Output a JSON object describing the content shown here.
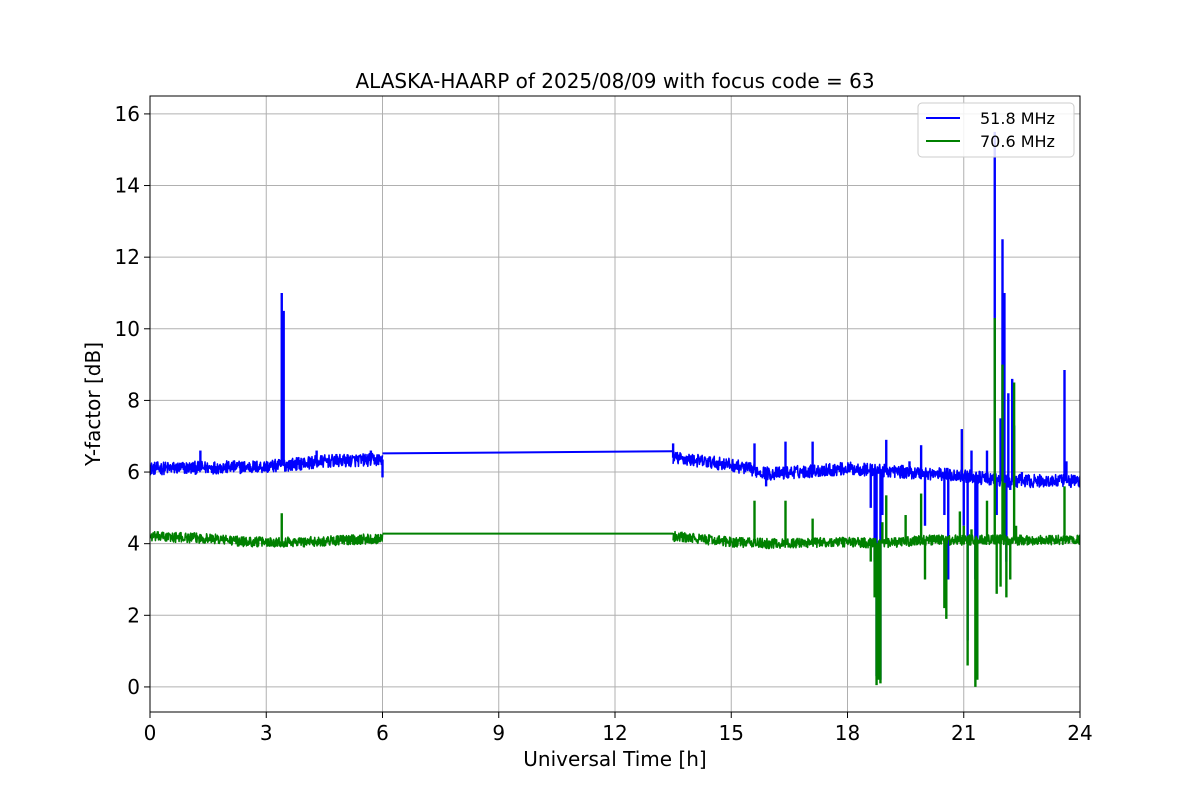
{
  "chart_data": {
    "type": "line",
    "title": "ALASKA-HAARP of 2025/08/09 with focus code = 63",
    "xlabel": "Universal Time [h]",
    "ylabel": "Y-factor [dB]",
    "xlim": [
      0,
      24
    ],
    "ylim": [
      -0.7,
      16.5
    ],
    "xticks": [
      0,
      3,
      6,
      9,
      12,
      15,
      18,
      21,
      24
    ],
    "yticks": [
      0,
      2,
      4,
      6,
      8,
      10,
      12,
      14,
      16
    ],
    "grid": true,
    "legend_position": "top-right",
    "series": [
      {
        "name": "51.8 MHz",
        "color": "#0000ff",
        "baseline": [
          [
            0,
            6.1
          ],
          [
            3,
            6.15
          ],
          [
            4.5,
            6.3
          ],
          [
            6,
            6.35
          ],
          [
            13.5,
            6.4
          ],
          [
            15,
            6.2
          ],
          [
            16,
            5.95
          ],
          [
            18,
            6.1
          ],
          [
            19.5,
            6.0
          ],
          [
            21,
            5.9
          ],
          [
            22,
            5.75
          ],
          [
            24,
            5.75
          ]
        ],
        "noise": 0.18,
        "segments": [
          [
            0,
            6
          ],
          [
            13.5,
            24
          ]
        ],
        "bridges": [
          [
            6,
            6.52,
            13.5,
            6.58
          ]
        ],
        "spikes": [
          [
            1.3,
            6.6
          ],
          [
            3.4,
            11.0
          ],
          [
            3.45,
            10.5
          ],
          [
            4.3,
            6.6
          ],
          [
            5.7,
            6.6
          ],
          [
            6.0,
            5.85
          ],
          [
            13.5,
            6.8
          ],
          [
            15.6,
            6.8
          ],
          [
            15.9,
            5.6
          ],
          [
            16.4,
            6.85
          ],
          [
            17.1,
            6.85
          ],
          [
            18.6,
            5.0
          ],
          [
            18.7,
            3.5
          ],
          [
            18.75,
            0.3
          ],
          [
            18.85,
            0.2
          ],
          [
            18.9,
            4.8
          ],
          [
            19.0,
            6.9
          ],
          [
            19.6,
            6.3
          ],
          [
            19.9,
            6.75
          ],
          [
            20.0,
            4.5
          ],
          [
            20.5,
            4.8
          ],
          [
            20.6,
            3.0
          ],
          [
            20.95,
            7.2
          ],
          [
            21.0,
            4.5
          ],
          [
            21.1,
            1.3
          ],
          [
            21.2,
            6.6
          ],
          [
            21.3,
            3.0
          ],
          [
            21.35,
            0.3
          ],
          [
            21.6,
            6.6
          ],
          [
            21.8,
            15.5
          ],
          [
            21.85,
            4.8
          ],
          [
            21.95,
            7.5
          ],
          [
            22.0,
            12.5
          ],
          [
            22.05,
            11.0
          ],
          [
            22.1,
            3.5
          ],
          [
            22.15,
            8.2
          ],
          [
            22.2,
            5.5
          ],
          [
            22.25,
            8.6
          ],
          [
            22.3,
            7.3
          ],
          [
            22.5,
            6.0
          ],
          [
            23.6,
            8.85
          ],
          [
            23.65,
            6.3
          ]
        ]
      },
      {
        "name": "70.6 MHz",
        "color": "#008000",
        "baseline": [
          [
            0,
            4.2
          ],
          [
            1.5,
            4.15
          ],
          [
            2.5,
            4.05
          ],
          [
            3,
            4.05
          ],
          [
            4,
            4.05
          ],
          [
            6,
            4.15
          ],
          [
            13.5,
            4.2
          ],
          [
            15,
            4.05
          ],
          [
            16,
            4.0
          ],
          [
            18,
            4.05
          ],
          [
            19,
            4.0
          ],
          [
            20,
            4.1
          ],
          [
            24,
            4.1
          ]
        ],
        "noise": 0.14,
        "segments": [
          [
            0,
            6
          ],
          [
            13.5,
            24
          ]
        ],
        "bridges": [
          [
            6,
            4.28,
            13.5,
            4.28
          ]
        ],
        "spikes": [
          [
            3.4,
            4.85
          ],
          [
            15.6,
            5.2
          ],
          [
            16.4,
            5.2
          ],
          [
            17.1,
            4.7
          ],
          [
            18.6,
            3.5
          ],
          [
            18.7,
            2.5
          ],
          [
            18.75,
            0.05
          ],
          [
            18.8,
            0.2
          ],
          [
            18.85,
            0.1
          ],
          [
            18.9,
            4.6
          ],
          [
            19.0,
            5.35
          ],
          [
            19.5,
            4.8
          ],
          [
            19.9,
            5.4
          ],
          [
            20.0,
            3.0
          ],
          [
            20.5,
            2.2
          ],
          [
            20.55,
            1.9
          ],
          [
            20.9,
            4.9
          ],
          [
            21.0,
            4.5
          ],
          [
            21.1,
            0.6
          ],
          [
            21.2,
            4.4
          ],
          [
            21.3,
            0.0
          ],
          [
            21.35,
            0.2
          ],
          [
            21.6,
            5.2
          ],
          [
            21.8,
            10.3
          ],
          [
            21.85,
            2.6
          ],
          [
            21.95,
            2.8
          ],
          [
            22.0,
            9.0
          ],
          [
            22.05,
            5.7
          ],
          [
            22.1,
            2.5
          ],
          [
            22.2,
            3.0
          ],
          [
            22.3,
            8.5
          ],
          [
            22.35,
            4.5
          ],
          [
            23.6,
            5.6
          ]
        ]
      }
    ]
  }
}
